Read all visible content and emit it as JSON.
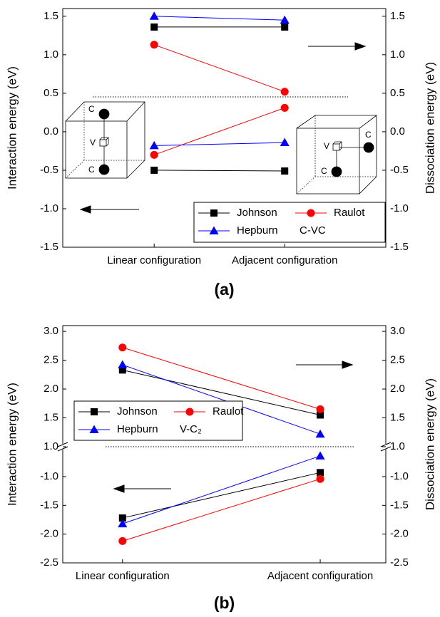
{
  "chart_data": [
    {
      "type": "line",
      "caption": "(a)",
      "ylabel": "Interaction energy (eV)",
      "y2label": "Dissociation energy (eV)",
      "categories": [
        "Linear configuration",
        "Adjacent configuration"
      ],
      "series": [
        {
          "name": "Johnson",
          "color": "#000000",
          "marker": "square",
          "values": [
            -0.5,
            -0.51
          ],
          "y2_values": [
            1.36,
            1.36
          ]
        },
        {
          "name": "Raulot",
          "color": "#ff0000",
          "marker": "circle",
          "values": [
            -0.3,
            0.31
          ],
          "y2_values": [
            1.13,
            0.52
          ]
        },
        {
          "name": "Hepburn",
          "color": "#0000ff",
          "marker": "triangle",
          "values": [
            -0.18,
            -0.14
          ],
          "y2_values": [
            1.5,
            1.45
          ]
        }
      ],
      "legend_suffix": "C-VC",
      "ylim": [
        -1.5,
        1.6
      ],
      "yticks": [
        -1.5,
        {
          "value": -1,
          "label": "-1.0"
        },
        -0.5,
        {
          "value": 0,
          "label": "0.0"
        },
        0.5,
        {
          "value": 1,
          "label": "1.0"
        },
        1.5
      ],
      "y2lim": [
        -1.5,
        1.6
      ],
      "y2ticks": [
        -1.5,
        {
          "value": -1,
          "label": "-1.0"
        },
        -0.5,
        {
          "value": 0,
          "label": "0.0"
        },
        0.5,
        {
          "value": 1,
          "label": "1.0"
        },
        1.5
      ],
      "insets": [
        [
          "C",
          "V",
          "C"
        ],
        [
          "V",
          "C",
          "C"
        ]
      ]
    },
    {
      "type": "line",
      "caption": "(b)",
      "ylabel": "Interaction energy (eV)",
      "y2label": "Dissociation energy (eV)",
      "categories": [
        "Linear configuration",
        "Adjacent configuration"
      ],
      "series": [
        {
          "name": "Johnson",
          "color": "#000000",
          "marker": "square",
          "values": [
            -1.72,
            -0.93
          ],
          "y2_values": [
            2.33,
            1.55
          ]
        },
        {
          "name": "Raulot",
          "color": "#ff0000",
          "marker": "circle",
          "values": [
            -2.12,
            -1.04
          ],
          "y2_values": [
            2.72,
            1.65
          ]
        },
        {
          "name": "Hepburn",
          "color": "#0000ff",
          "marker": "triangle",
          "values": [
            -1.82,
            -0.64
          ],
          "y2_values": [
            2.42,
            1.22
          ]
        }
      ],
      "legend_suffix": "V-C₂",
      "ylim": [
        -2.5,
        -0.48
      ],
      "yticks": [
        -2.5,
        {
          "value": -2,
          "label": "-2.0"
        },
        -1.5,
        {
          "value": -1,
          "label": "-1.0"
        }
      ],
      "y2lim": [
        1,
        3.1
      ],
      "y2ticks": [
        {
          "value": 1,
          "label": "1.0"
        },
        1.5,
        {
          "value": 2,
          "label": "2.0"
        },
        2.5,
        {
          "value": 3,
          "label": "3.0"
        }
      ]
    }
  ]
}
